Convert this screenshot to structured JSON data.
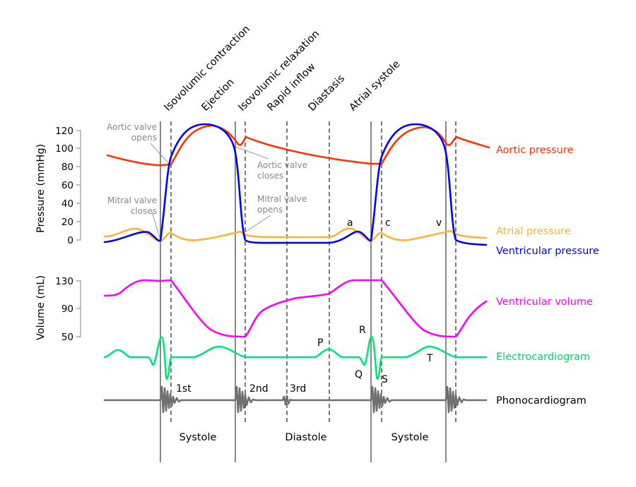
{
  "phases": [
    "Isovolumic contraction",
    "Ejection",
    "Isovolumic relaxation",
    "Rapid inflow",
    "Diastasis",
    "Atrial systole"
  ],
  "pressure_axis": {
    "label": "Pressure (mmHg)",
    "ticks": [
      "120",
      "100",
      "80",
      "60",
      "40",
      "20",
      "0"
    ]
  },
  "volume_axis": {
    "label": "Volume (mL)",
    "ticks": [
      "130",
      "90",
      "50"
    ]
  },
  "annotations": {
    "aortic_opens": [
      "Aortic valve",
      "opens"
    ],
    "aortic_closes": [
      "Aortic valve",
      "closes"
    ],
    "mitral_closes": [
      "Mitral valve",
      "closes"
    ],
    "mitral_opens": [
      "Mitral valve",
      "opens"
    ]
  },
  "wave_markers": {
    "a": "a",
    "c": "c",
    "v": "v",
    "P": "P",
    "Q": "Q",
    "R": "R",
    "S": "S",
    "T": "T"
  },
  "heart_sounds": [
    "1st",
    "2nd",
    "3rd"
  ],
  "legend": {
    "aortic": "Aortic pressure",
    "atrial": "Atrial pressure",
    "ventricular": "Ventricular pressure",
    "volume": "Ventricular volume",
    "ecg": "Electrocardiogram",
    "phono": "Phonocardiogram"
  },
  "cycle_phases": [
    "Systole",
    "Diastole",
    "Systole"
  ],
  "colors": {
    "aortic": "#ff3300",
    "atrial": "#ffb13b",
    "ventricular": "#0000ff",
    "volume": "#ff00ff",
    "ecg": "#00e676",
    "phono": "#707070"
  }
}
